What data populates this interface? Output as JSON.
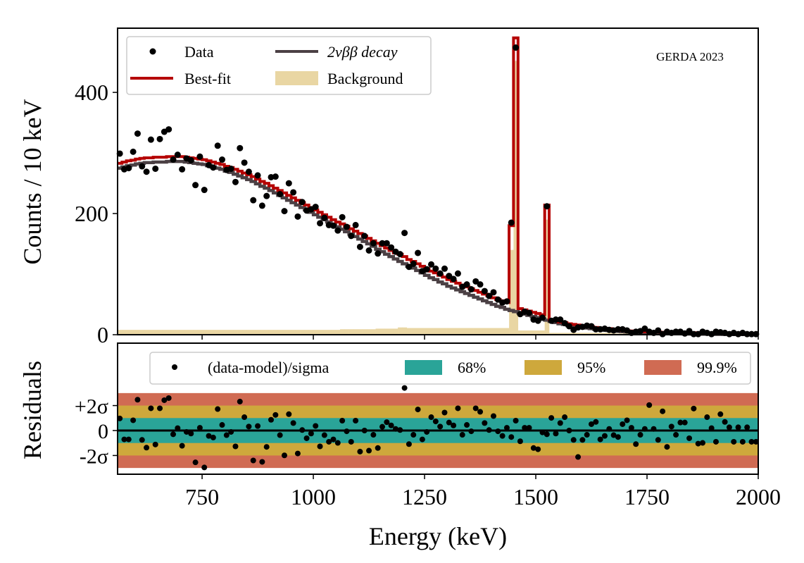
{
  "chart_data": [
    {
      "type": "line",
      "panel": "main",
      "ylabel": "Counts / 10 keV",
      "xlim": [
        560,
        2000
      ],
      "ylim": [
        0,
        506
      ],
      "yticks": [
        0,
        200,
        400
      ],
      "ytick_labels": [
        "0",
        "200",
        "400"
      ],
      "annotation": "GERDA 2023",
      "legend_placement": "top-left",
      "legend": {
        "data": "Data",
        "twonu": "2νββ decay",
        "bestfit": "Best-fit",
        "background": "Background"
      },
      "bin_start": 565,
      "bin_width": 10,
      "colors": {
        "data": "#000000",
        "bestfit": "#b50000",
        "twonu": "#4b4044",
        "background": "#e9d6a3"
      },
      "two_nu_bb": [
        275,
        277,
        279,
        280,
        282,
        283,
        284,
        284,
        285,
        285,
        285,
        286,
        286,
        286,
        286,
        285,
        284,
        283,
        282,
        281,
        279,
        277,
        275,
        273,
        270,
        268,
        265,
        262,
        259,
        256,
        253,
        249,
        245,
        242,
        238,
        234,
        230,
        226,
        222,
        218,
        214,
        210,
        206,
        202,
        198,
        194,
        190,
        186,
        182,
        178,
        174,
        170,
        166,
        162,
        158,
        154,
        150,
        146,
        141,
        137,
        133,
        129,
        125,
        121,
        117,
        113,
        110,
        106,
        102,
        98,
        94,
        91,
        87,
        84,
        80,
        77,
        74,
        71,
        68,
        65,
        62,
        59,
        56,
        53,
        50,
        47,
        45,
        42,
        40,
        38,
        36,
        34,
        32,
        30,
        28,
        26,
        24,
        22,
        20,
        18,
        17,
        15,
        14,
        13,
        12,
        11,
        10,
        9,
        8,
        7.5,
        7,
        6,
        5.5,
        5,
        4.5,
        4,
        3.8,
        3.5,
        3,
        2.8,
        2.5,
        2.3,
        2,
        1.9,
        1.7,
        1.5,
        1.4,
        1.3,
        1.2,
        1.1,
        1,
        0.9,
        0.8,
        0.7,
        0.6,
        0.6,
        0.5,
        0.5,
        0.4,
        0.4,
        0.3,
        0.3,
        0.2,
        0.2
      ],
      "background": [
        8,
        8,
        8,
        8,
        8,
        8,
        8,
        8,
        8,
        8,
        8,
        8,
        8,
        8,
        8,
        8,
        8,
        8,
        8,
        8,
        8,
        8,
        8,
        8,
        8,
        8,
        8,
        8,
        8,
        8,
        8,
        8,
        8,
        8,
        8,
        8,
        8,
        8,
        8,
        8,
        8,
        8,
        8,
        8,
        8,
        8,
        8,
        8,
        8,
        8,
        9,
        9,
        9,
        9,
        9,
        9,
        9,
        9,
        10,
        10,
        10,
        10,
        10,
        12,
        12,
        11,
        11,
        11,
        11,
        11,
        11,
        11,
        11,
        11,
        11,
        11,
        11,
        11,
        11,
        11,
        11,
        11,
        11,
        11,
        11,
        11,
        11,
        11,
        140,
        452,
        7,
        7,
        7,
        7,
        7,
        7,
        190,
        3,
        3,
        3,
        3,
        3,
        3,
        3,
        3,
        3,
        3,
        3,
        3,
        3,
        3,
        2,
        2,
        2,
        2,
        2,
        2,
        2,
        2,
        2,
        2,
        2,
        2,
        2,
        2,
        2,
        2,
        2,
        2,
        2,
        2,
        2,
        2,
        2,
        2,
        2,
        2,
        2,
        2,
        2,
        2,
        2,
        2,
        2
      ],
      "data_counts": [
        299,
        273,
        275,
        302,
        332,
        278,
        269,
        322,
        274,
        323,
        335,
        339,
        289,
        297,
        273,
        291,
        288,
        247,
        294,
        239,
        280,
        276,
        312,
        289,
        272,
        274,
        252,
        308,
        284,
        269,
        222,
        263,
        213,
        229,
        260,
        261,
        232,
        204,
        250,
        235,
        195,
        219,
        205,
        207,
        211,
        184,
        193,
        181,
        180,
        172,
        194,
        178,
        163,
        181,
        145,
        163,
        139,
        151,
        134,
        151,
        151,
        144,
        137,
        133,
        168,
        112,
        117,
        135,
        105,
        108,
        116,
        109,
        101,
        109,
        97,
        92,
        101,
        79,
        83,
        75,
        88,
        83,
        72,
        64,
        70,
        58,
        53,
        55,
        185,
        474,
        34,
        38,
        36,
        25,
        23,
        28,
        212,
        23,
        25,
        25,
        19,
        14,
        8,
        12,
        13,
        15,
        14,
        9,
        9,
        10,
        8,
        7,
        9,
        9,
        7,
        3,
        5,
        6,
        10,
        5,
        3,
        7,
        1,
        5,
        3,
        5,
        5,
        2,
        6,
        1,
        1,
        5,
        3,
        1,
        5,
        4,
        3,
        1,
        3,
        1,
        3,
        1,
        1,
        1
      ]
    },
    {
      "type": "scatter",
      "panel": "residuals",
      "xlabel": "Energy (keV)",
      "ylabel": "Residuals",
      "xlim": [
        560,
        2000
      ],
      "ylim": [
        -3.5,
        7
      ],
      "xticks": [
        750,
        1000,
        1250,
        1500,
        1750,
        2000
      ],
      "xtick_labels": [
        "750",
        "1000",
        "1250",
        "1500",
        "1750",
        "2000"
      ],
      "ytick_labels": {
        "plus2": "+2σ",
        "zero": "0",
        "minus2": "-2σ"
      },
      "legend_placement": "top",
      "legend": {
        "points": "(data-model)/sigma",
        "band1": "68%",
        "band2": "95%",
        "band3": "99.9%"
      },
      "bands_sigma": [
        1,
        2,
        3
      ],
      "colors": {
        "band1": "#2aa498",
        "band2": "#cea83c",
        "band3": "#d06b53"
      },
      "bin_start": 565,
      "bin_width": 10,
      "residuals": [
        0.97,
        -0.71,
        -0.71,
        0.82,
        2.47,
        -0.75,
        -1.37,
        1.78,
        -1.12,
        1.78,
        2.43,
        2.6,
        -0.3,
        0.19,
        -1.22,
        -0.11,
        -0.24,
        -2.55,
        0.22,
        -2.96,
        -0.43,
        -0.56,
        1.72,
        0.45,
        -0.37,
        -0.11,
        -1.27,
        2.32,
        1.07,
        0.32,
        -2.4,
        0.36,
        -2.51,
        -1.31,
        0.86,
        1.25,
        -0.37,
        -1.99,
        1.31,
        0.6,
        -1.84,
        0.04,
        -0.62,
        -0.24,
        0.37,
        -1.27,
        -0.37,
        -0.9,
        -0.71,
        -0.99,
        0.79,
        -0.06,
        -0.9,
        0.79,
        -1.69,
        0,
        -1.61,
        -0.34,
        -1.4,
        0.3,
        0.67,
        0.41,
        0.13,
        0.04,
        3.41,
        -1.09,
        -0.34,
        1.69,
        -0.71,
        -0.11,
        1.07,
        0.73,
        0.32,
        1.44,
        0.64,
        0.41,
        1.78,
        -0.34,
        0.45,
        -0.06,
        1.78,
        1.5,
        0.6,
        0.04,
        1.16,
        -0.06,
        -0.43,
        0.22,
        -0.52,
        0.79,
        -0.86,
        0.22,
        0.22,
        -1.4,
        -1.5,
        -0.15,
        -0.3,
        1.01,
        -0.24,
        0.6,
        1.07,
        0,
        -0.75,
        -2.12,
        -0.75,
        -0.34,
        0.51,
        0.69,
        -0.71,
        -0.43,
        0.13,
        -0.37,
        -0.52,
        0.51,
        0.82,
        0.22,
        -1.09,
        -0.34,
        0.13,
        2.04,
        0.13,
        -0.75,
        1.54,
        -1.31,
        0.32,
        -0.34,
        0.64,
        0.64,
        -0.62,
        1.76,
        -1.05,
        -0.99,
        1.07,
        0.19,
        -0.9,
        1.31,
        0.69,
        0.26,
        -0.9,
        0.26,
        -0.9,
        0.26,
        -0.9,
        -0.9
      ]
    }
  ]
}
